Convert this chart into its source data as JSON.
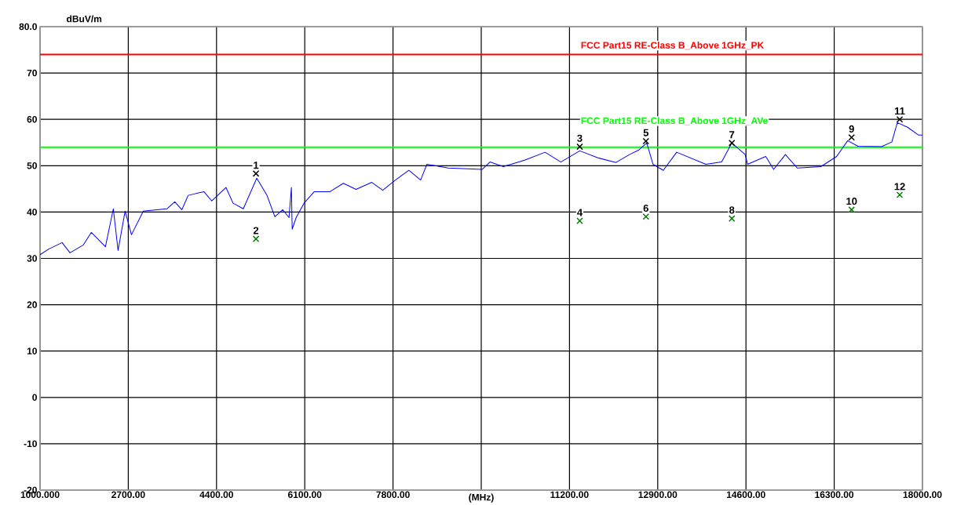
{
  "chart_data": {
    "type": "line",
    "xlabel": "(MHz)",
    "ylabel": "dBuV/m",
    "xlim": [
      1000,
      18000
    ],
    "ylim": [
      -20,
      80
    ],
    "xticks": [
      {
        "value": 1000,
        "label": "1000.000"
      },
      {
        "value": 2700,
        "label": "2700.00"
      },
      {
        "value": 4400,
        "label": "4400.00"
      },
      {
        "value": 6100,
        "label": "6100.00"
      },
      {
        "value": 7800,
        "label": "7800.00"
      },
      {
        "value": 9500,
        "label": null
      },
      {
        "value": 11200,
        "label": "11200.00"
      },
      {
        "value": 12900,
        "label": "12900.00"
      },
      {
        "value": 14600,
        "label": "14600.00"
      },
      {
        "value": 16300,
        "label": "16300.00"
      },
      {
        "value": 18000,
        "label": "18000.00"
      }
    ],
    "yticks": [
      -20,
      -10,
      0,
      10,
      20,
      30,
      40,
      50,
      60,
      70,
      {
        "value": 80,
        "label": "80.0"
      }
    ],
    "grid": true,
    "ref_lines": [
      {
        "axis": "y",
        "value": 74,
        "label": "FCC Part15 RE-Class B_Above 1GHz_PK",
        "color": "#ff0000"
      },
      {
        "axis": "y",
        "value": 54,
        "label": "FCC Part15 RE-Class B_Above 1GHz_AVe",
        "color": "#00ff00"
      }
    ],
    "series": [
      {
        "color": "#0000ff",
        "marker": "none",
        "x": [
          1000,
          1167,
          1425,
          1577,
          1835,
          1987,
          2260,
          2412,
          2503,
          2639,
          2761,
          2989,
          3444,
          3596,
          3732,
          3854,
          4157,
          4309,
          4582,
          4719,
          4916,
          5175,
          5372,
          5524,
          5676,
          5797,
          5842,
          5858,
          5934,
          6085,
          6283,
          6586,
          6844,
          7087,
          7391,
          7603,
          7846,
          8106,
          8332,
          8453,
          8863,
          9516,
          9668,
          9926,
          10336,
          10730,
          11034,
          11398,
          11747,
          12097,
          12355,
          12537,
          12689,
          12810,
          13007,
          13265,
          13827,
          14131,
          14328,
          14586,
          14632,
          14981,
          15133,
          15360,
          15588,
          16043,
          16347,
          16560,
          16757,
          17212,
          17410,
          17516,
          17714,
          17926,
          18000
        ],
        "values": [
          30.8,
          32.0,
          33.4,
          31.2,
          32.9,
          35.6,
          32.5,
          40.7,
          31.7,
          40.2,
          35.1,
          40.2,
          40.7,
          42.2,
          40.5,
          43.6,
          44.4,
          42.4,
          45.3,
          41.9,
          40.7,
          47.3,
          43.6,
          39.0,
          40.5,
          38.8,
          45.3,
          36.3,
          38.8,
          41.9,
          44.4,
          44.4,
          46.2,
          44.9,
          46.4,
          44.7,
          46.9,
          49.0,
          46.9,
          50.3,
          49.5,
          49.2,
          50.8,
          49.8,
          51.2,
          52.9,
          50.8,
          53.2,
          51.7,
          50.7,
          52.4,
          53.4,
          54.9,
          50.3,
          49.0,
          52.9,
          50.3,
          50.8,
          54.9,
          52.4,
          50.3,
          52.0,
          49.2,
          52.4,
          49.5,
          49.8,
          52.0,
          55.4,
          54.2,
          54.1,
          55.1,
          59.3,
          58.3,
          56.6,
          56.6
        ]
      },
      {
        "type": "scatter",
        "color": "#000000",
        "marker": "cross",
        "x": [
          5160,
          11398,
          12673,
          14328,
          16635,
          17562
        ],
        "values": [
          48.3,
          54.1,
          55.3,
          54.9,
          56.1,
          60.0
        ]
      },
      {
        "type": "scatter",
        "color": "#008000",
        "marker": "cross",
        "x": [
          5160,
          11398,
          12673,
          14328,
          16635,
          17562
        ],
        "values": [
          34.2,
          38.1,
          39.0,
          38.6,
          40.5,
          43.7
        ]
      }
    ],
    "annotations": [
      {
        "text": "1",
        "x": 5160,
        "y": 48.3
      },
      {
        "text": "2",
        "x": 5160,
        "y": 34.2
      },
      {
        "text": "3",
        "x": 11398,
        "y": 54.1
      },
      {
        "text": "4",
        "x": 11398,
        "y": 38.1
      },
      {
        "text": "5",
        "x": 12673,
        "y": 55.3
      },
      {
        "text": "6",
        "x": 12673,
        "y": 39.0
      },
      {
        "text": "7",
        "x": 14328,
        "y": 54.9
      },
      {
        "text": "8",
        "x": 14328,
        "y": 38.6
      },
      {
        "text": "9",
        "x": 16635,
        "y": 56.1
      },
      {
        "text": "10",
        "x": 16635,
        "y": 40.5
      },
      {
        "text": "11",
        "x": 17562,
        "y": 60.0
      },
      {
        "text": "12",
        "x": 17562,
        "y": 43.7
      }
    ]
  }
}
